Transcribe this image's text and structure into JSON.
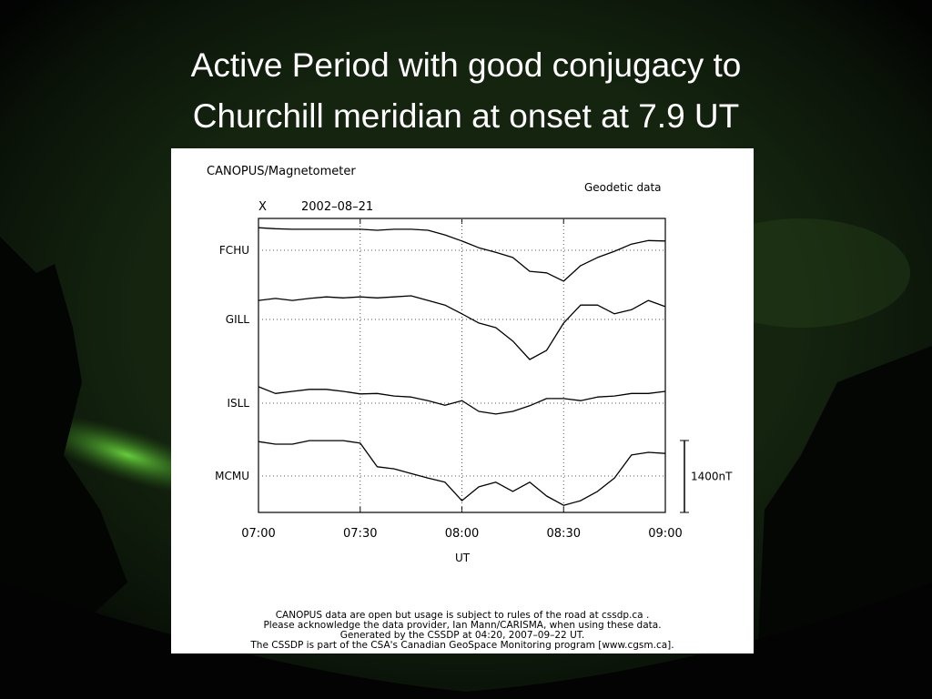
{
  "slide": {
    "title_lines": [
      "Active Period with good conjugacy to",
      "Churchill meridian at onset at 7.9 UT"
    ]
  },
  "chart_data": {
    "type": "line",
    "title": "CANOPUS/Magnetometer",
    "subtitle": "Geodetic data",
    "component": "X",
    "date": "2002–08–21",
    "x_label": "UT",
    "x": [
      "07:00",
      "07:05",
      "07:10",
      "07:15",
      "07:20",
      "07:25",
      "07:30",
      "07:35",
      "07:40",
      "07:45",
      "07:50",
      "07:55",
      "08:00",
      "08:05",
      "08:10",
      "08:15",
      "08:20",
      "08:25",
      "08:30",
      "08:35",
      "08:40",
      "08:45",
      "08:50",
      "08:55",
      "09:00"
    ],
    "xlim": [
      "07:00",
      "09:00"
    ],
    "xticks": [
      "07:00",
      "07:30",
      "08:00",
      "08:30",
      "09:00"
    ],
    "grid": true,
    "series": [
      {
        "name": "FCHU",
        "color": "#000000",
        "values": [
          440,
          420,
          410,
          410,
          410,
          410,
          410,
          390,
          410,
          410,
          390,
          300,
          180,
          50,
          -40,
          -140,
          -410,
          -440,
          -600,
          -300,
          -140,
          -20,
          120,
          190,
          180
        ]
      },
      {
        "name": "GILL",
        "color": "#000000",
        "values": [
          370,
          410,
          370,
          410,
          440,
          420,
          440,
          420,
          440,
          460,
          370,
          280,
          110,
          -70,
          -160,
          -420,
          -780,
          -600,
          -70,
          280,
          280,
          110,
          190,
          370,
          250
        ]
      },
      {
        "name": "ISLL",
        "color": "#000000",
        "values": [
          320,
          190,
          230,
          270,
          270,
          230,
          180,
          190,
          140,
          120,
          50,
          -40,
          50,
          -160,
          -210,
          -160,
          -50,
          90,
          90,
          50,
          120,
          140,
          190,
          190,
          230
        ]
      },
      {
        "name": "MCMU",
        "color": "#000000",
        "values": [
          670,
          620,
          620,
          690,
          690,
          690,
          640,
          180,
          140,
          50,
          -40,
          -120,
          -480,
          -210,
          -120,
          -300,
          -120,
          -390,
          -570,
          -480,
          -300,
          -40,
          410,
          460,
          440
        ]
      }
    ],
    "scale_bar": {
      "value": 1400,
      "label": "1400nT"
    },
    "footer": [
      "CANOPUS data are open but usage is subject to rules of the road at cssdp.ca .",
      "Please acknowledge the data provider, Ian Mann/CARISMA, when using these data.",
      "Generated by the CSSDP at 04:20, 2007–09–22 UT.",
      "The CSSDP is part of the CSA's Canadian GeoSpace Monitoring program [www.cgsm.ca]."
    ]
  }
}
